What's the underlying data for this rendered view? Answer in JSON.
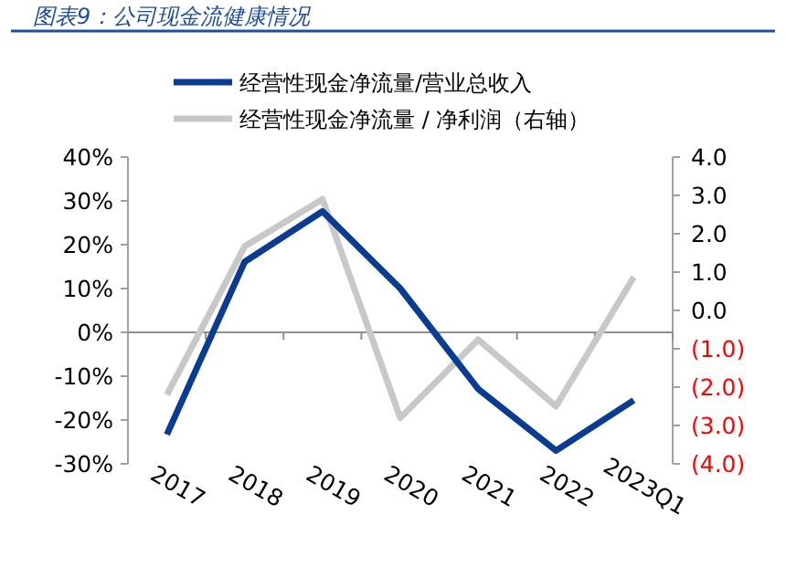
{
  "chart_data": {
    "type": "line",
    "title": "图表9：公司现金流健康情况",
    "categories": [
      "2017",
      "2018",
      "2019",
      "2020",
      "2021",
      "2022",
      "2023Q1"
    ],
    "series": [
      {
        "name": "经营性现金净流量/营业总收入",
        "color": "#0a3d91",
        "values": [
          -23.3,
          16.1,
          27.6,
          10,
          -12.9,
          -27,
          -15.5
        ]
      },
      {
        "name": "经营性现金净流量 / 净利润（右轴）",
        "color": "#c8c8c8",
        "axis": "y2",
        "values": [
          -2.2,
          1.67,
          2.9,
          -2.8,
          -0.76,
          -2.5,
          0.87
        ]
      }
    ],
    "ylim": [
      -30,
      40
    ],
    "yticks": [
      {
        "value": -30,
        "label": "-30%"
      },
      {
        "value": -20,
        "label": "-20%"
      },
      {
        "value": -10,
        "label": "-10%"
      },
      {
        "value": 0,
        "label": "0%"
      },
      {
        "value": 10,
        "label": "10%"
      },
      {
        "value": 20,
        "label": "20%"
      },
      {
        "value": 30,
        "label": "30%"
      },
      {
        "value": 40,
        "label": "40%"
      }
    ],
    "y2lim": [
      -4,
      4
    ],
    "y2ticks": [
      {
        "value": -4,
        "label": "(4.0)"
      },
      {
        "value": -3,
        "label": "(3.0)"
      },
      {
        "value": -2,
        "label": "(2.0)"
      },
      {
        "value": -1,
        "label": "(1.0)"
      },
      {
        "value": 0,
        "label": "0.0"
      },
      {
        "value": 1,
        "label": "1.0"
      },
      {
        "value": 2,
        "label": "2.0"
      },
      {
        "value": 3,
        "label": "3.0"
      },
      {
        "value": 4,
        "label": "4.0"
      }
    ],
    "legend": "top",
    "marker": "none",
    "line_style": "solid"
  }
}
